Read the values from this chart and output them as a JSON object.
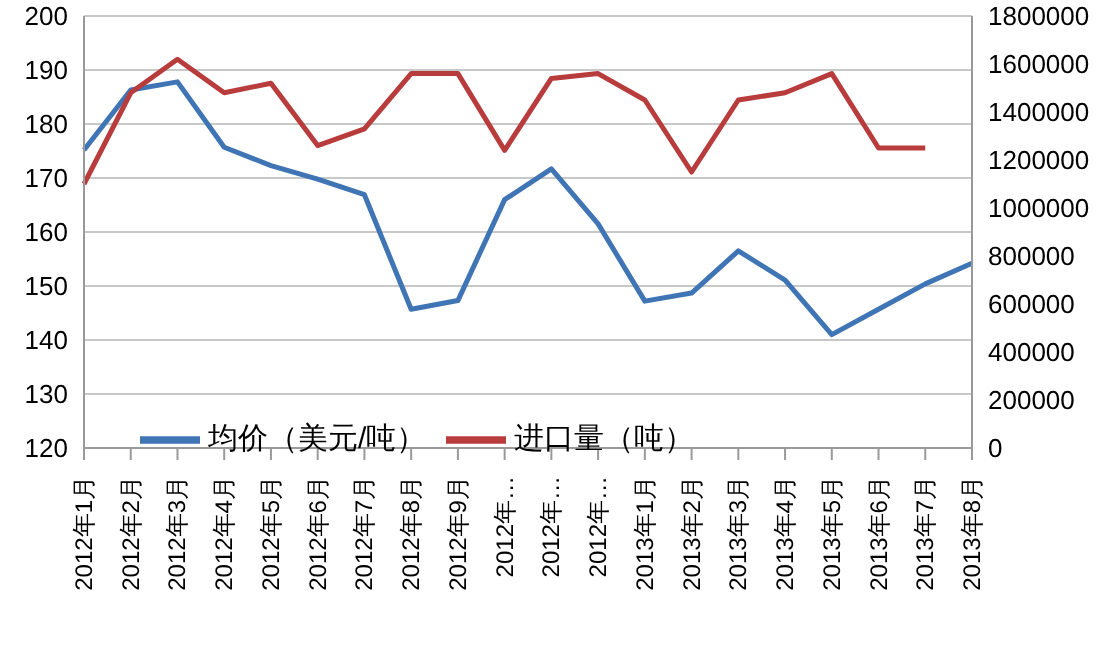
{
  "chart_data": {
    "type": "line",
    "categories": [
      "2012年1月",
      "2012年2月",
      "2012年3月",
      "2012年4月",
      "2012年5月",
      "2012年6月",
      "2012年7月",
      "2012年8月",
      "2012年9月",
      "2012年…",
      "2012年…",
      "2012年…",
      "2013年1月",
      "2013年2月",
      "2013年3月",
      "2013年4月",
      "2013年5月",
      "2013年6月",
      "2013年7月",
      "2013年8月"
    ],
    "series": [
      {
        "name": "均价（美元/吨）",
        "color": "#3f74b5",
        "values": [
          175.2,
          186.3,
          187.8,
          175.7,
          172.3,
          169.8,
          166.9,
          145.7,
          147.3,
          166.0,
          171.7,
          161.5,
          147.2,
          148.7,
          156.5,
          151.1,
          141.0,
          145.7,
          150.4,
          154.2
        ]
      },
      {
        "name": "进口量（吨）",
        "color": "#b83c3c",
        "axis": "y2",
        "values": [
          1100000,
          1480000,
          1620000,
          1480000,
          1520000,
          1260000,
          1330000,
          1560000,
          1560000,
          1240000,
          1540000,
          1560000,
          1450000,
          1150000,
          1450000,
          1480000,
          1560000,
          1250000,
          1250000,
          null
        ]
      }
    ],
    "ylim": [
      120,
      200
    ],
    "yticks": [
      120,
      130,
      140,
      150,
      160,
      170,
      180,
      190,
      200
    ],
    "y2lim": [
      0,
      1800000
    ],
    "y2ticks": [
      0,
      200000,
      400000,
      600000,
      800000,
      1000000,
      1200000,
      1400000,
      1600000,
      1800000
    ],
    "grid": "y",
    "legend": "bottom",
    "marker": "none",
    "line_style": "solid"
  }
}
